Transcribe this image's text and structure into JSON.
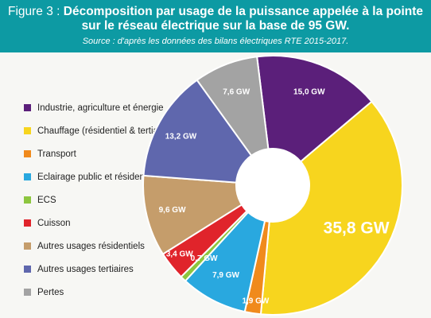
{
  "header": {
    "figure_label": "Figure 3 :",
    "title_line1": "Décomposition par usage de la puissance appelée à la pointe",
    "title_line2": "sur le réseau électrique sur la base de 95 GW.",
    "source": "Source : d'après les données des bilans électriques RTE 2015-2017."
  },
  "chart_data": {
    "type": "pie",
    "style": "donut",
    "unit": "GW",
    "title": "Décomposition par usage de la puissance appelée à la pointe sur le réseau électrique sur la base de 95 GW.",
    "legend_position": "left",
    "slices": [
      {
        "name": "Industrie, agriculture et énergie",
        "value": 15.0,
        "label": "15,0 GW",
        "color": "#5b1f7a"
      },
      {
        "name": "Chauffage (résidentiel & tertiaire)",
        "value": 35.8,
        "label": "35,8 GW",
        "color": "#f7d51e"
      },
      {
        "name": "Transport",
        "value": 1.9,
        "label": "1,9 GW",
        "color": "#f08a1c"
      },
      {
        "name": "Eclairage public et résidentiel",
        "value": 7.9,
        "label": "7,9 GW",
        "color": "#29a8df"
      },
      {
        "name": "ECS",
        "value": 0.7,
        "label": "0,7 GW",
        "color": "#8dc63f"
      },
      {
        "name": "Cuisson",
        "value": 3.4,
        "label": "3,4 GW",
        "color": "#e0242b"
      },
      {
        "name": "Autres usages résidentiels",
        "value": 9.6,
        "label": "9,6 GW",
        "color": "#c59d6b"
      },
      {
        "name": "Autres usages tertiaires",
        "value": 13.2,
        "label": "13,2 GW",
        "color": "#5f67ad"
      },
      {
        "name": "Pertes",
        "value": 7.6,
        "label": "7,6 GW",
        "color": "#a3a3a3"
      }
    ]
  }
}
